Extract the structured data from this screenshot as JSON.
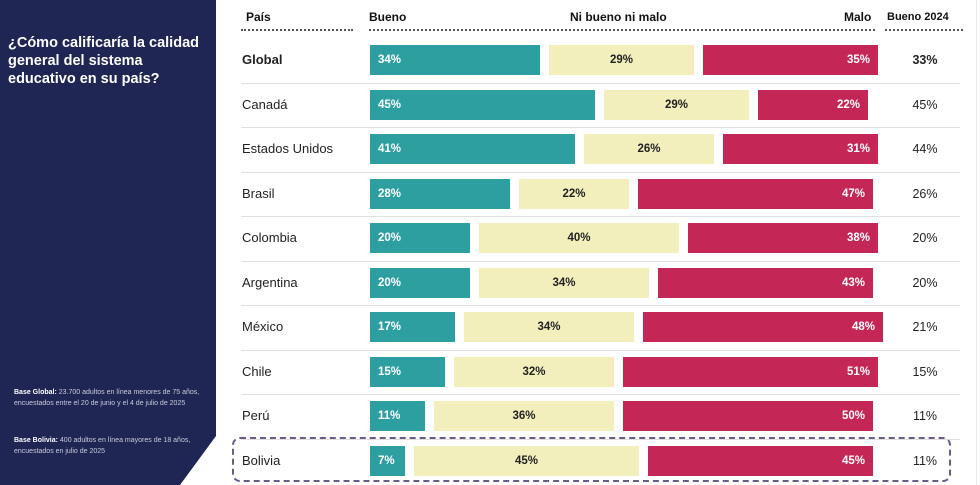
{
  "panel": {
    "question": "¿Cómo calificaría la calidad general del sistema educativo en su país?",
    "notes": [
      {
        "label": "Base Global:",
        "text": " 23.700 adultos en línea menores de 75 años, encuestados entre el 20 de junio y el 4 de julio de 2025"
      },
      {
        "label": "Base Bolivia:",
        "text": " 400 adultos en línea mayores de 18 años, encuestados en julio de 2025"
      }
    ]
  },
  "colors": {
    "panel_bg": "#1f2654",
    "good": "#2e9fa0",
    "neutral": "#f3efbd",
    "bad": "#c42655",
    "highlight_border": "#6b5b87"
  },
  "chart_data": {
    "type": "bar",
    "orientation": "horizontal-stacked",
    "title": "¿Cómo calificaría la calidad general del sistema educativo en su país?",
    "columns": {
      "country": "País",
      "good": "Bueno",
      "neutral": "Ni bueno ni malo",
      "bad": "Malo",
      "prev": "Bueno 2024"
    },
    "categories": [
      "Global",
      "Canadá",
      "Estados Unidos",
      "Brasil",
      "Colombia",
      "Argentina",
      "México",
      "Chile",
      "Perú",
      "Bolivia"
    ],
    "series": [
      {
        "name": "Bueno",
        "values": [
          34,
          45,
          41,
          28,
          20,
          20,
          17,
          15,
          11,
          7
        ]
      },
      {
        "name": "Ni bueno ni malo",
        "values": [
          29,
          29,
          26,
          22,
          40,
          34,
          34,
          32,
          36,
          45
        ]
      },
      {
        "name": "Malo",
        "values": [
          35,
          22,
          31,
          47,
          38,
          43,
          48,
          51,
          50,
          45
        ]
      },
      {
        "name": "Bueno 2024",
        "values": [
          33,
          45,
          44,
          26,
          20,
          20,
          21,
          15,
          11,
          11
        ]
      }
    ],
    "bold_rows": [
      "Global"
    ],
    "highlighted_rows": [
      "Bolivia"
    ],
    "unit": "%"
  }
}
